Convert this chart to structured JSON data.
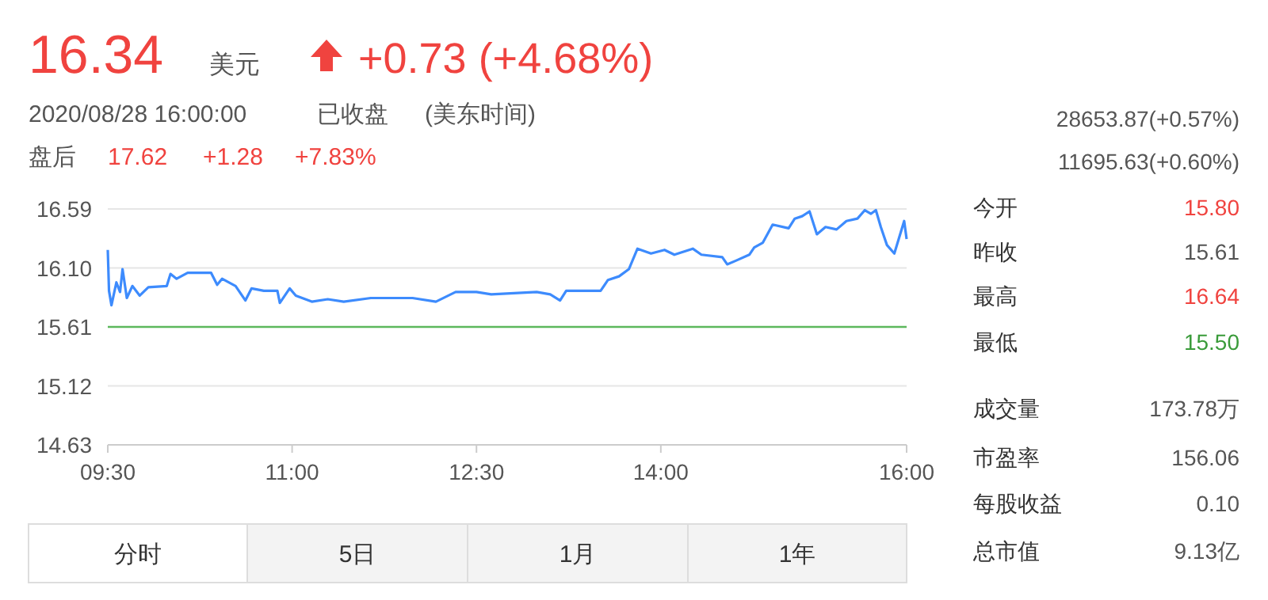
{
  "chart_data": {
    "type": "line",
    "x": [
      9.5,
      9.51,
      9.53,
      9.57,
      9.6,
      9.62,
      9.655,
      9.7,
      9.76,
      9.83,
      9.98,
      10.01,
      10.06,
      10.15,
      10.34,
      10.39,
      10.43,
      10.54,
      10.62,
      10.67,
      10.77,
      10.88,
      10.9,
      10.98,
      11.03,
      11.16,
      11.29,
      11.42,
      11.64,
      11.98,
      12.17,
      12.33,
      12.5,
      12.62,
      12.99,
      13.1,
      13.18,
      13.23,
      13.51,
      13.57,
      13.66,
      13.74,
      13.81,
      13.92,
      14.03,
      14.11,
      14.26,
      14.33,
      14.5,
      14.54,
      14.61,
      14.72,
      14.76,
      14.83,
      14.91,
      15.04,
      15.09,
      15.15,
      15.21,
      15.27,
      15.34,
      15.43,
      15.51,
      15.6,
      15.66,
      15.71,
      15.75,
      15.79,
      15.84,
      15.9,
      15.98,
      16.0
    ],
    "series": [
      {
        "color": "#3d8bfd",
        "values": [
          16.25,
          15.91,
          15.79,
          15.98,
          15.9,
          16.09,
          15.85,
          15.95,
          15.87,
          15.94,
          15.95,
          16.05,
          16.01,
          16.06,
          16.06,
          15.96,
          16.01,
          15.95,
          15.83,
          15.93,
          15.91,
          15.91,
          15.81,
          15.93,
          15.87,
          15.82,
          15.84,
          15.82,
          15.85,
          15.85,
          15.82,
          15.9,
          15.9,
          15.88,
          15.9,
          15.88,
          15.83,
          15.91,
          15.91,
          16.0,
          16.03,
          16.09,
          16.26,
          16.22,
          16.25,
          16.21,
          16.26,
          16.21,
          16.19,
          16.13,
          16.16,
          16.21,
          16.27,
          16.31,
          16.46,
          16.43,
          16.51,
          16.53,
          16.57,
          16.38,
          16.44,
          16.42,
          16.49,
          16.51,
          16.58,
          16.55,
          16.58,
          16.44,
          16.29,
          16.22,
          16.49,
          16.34
        ]
      }
    ],
    "xlim": [
      9.5,
      16.0
    ],
    "xticks": [
      {
        "value": 9.5,
        "label": "09:30"
      },
      {
        "value": 11,
        "label": "11:00"
      },
      {
        "value": 12.5,
        "label": "12:30"
      },
      {
        "value": 14,
        "label": "14:00"
      },
      {
        "value": 16,
        "label": "16:00"
      }
    ],
    "ylim": [
      14.63,
      16.59
    ],
    "yticks": [
      14.63,
      15.12,
      15.61,
      {
        "value": 16.1,
        "label": "16.10"
      },
      16.59
    ],
    "grid": "y",
    "ref_lines": [
      {
        "axis": "y",
        "value": 15.61,
        "color": "#5cb85c"
      }
    ],
    "annotations": [
      "16.34",
      "美元",
      "+0.73 (+4.68%)",
      "2020/08/28 16:00:00",
      "已收盘",
      "(美东时间)",
      "盘后",
      "17.62",
      "+1.28",
      "+7.83%",
      "28653.87(+0.57%)",
      "11695.63(+0.60%)",
      "今开",
      "15.80",
      "昨收",
      "15.61",
      "最高",
      "16.64",
      "最低",
      "15.50",
      "成交量",
      "173.78万",
      "市盈率",
      "156.06",
      "每股收益",
      "0.10",
      "总市值",
      "9.13亿",
      "分时",
      "5日",
      "1月",
      "1年"
    ]
  }
}
